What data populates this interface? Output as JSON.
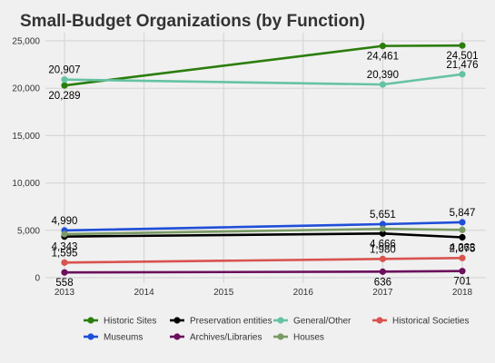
{
  "chart_data": {
    "type": "line",
    "title": "Small-Budget Organizations (by Function)",
    "xlabel": "",
    "ylabel": "",
    "xlim": [
      2013,
      2018
    ],
    "ylim": [
      0,
      25000
    ],
    "x_ticks": [
      "2013",
      "2014",
      "2015",
      "2016",
      "2017",
      "2018"
    ],
    "y_ticks": [
      "0",
      "5,000",
      "10,000",
      "15,000",
      "20,000",
      "25,000"
    ],
    "y_tick_values": [
      0,
      5000,
      10000,
      15000,
      20000,
      25000
    ],
    "grid": true,
    "legend_position": "bottom",
    "series": [
      {
        "name": "Historic Sites",
        "color": "#2b7d0c",
        "points": [
          {
            "x": 2013,
            "y": 20289
          },
          {
            "x": 2017,
            "y": 24461
          },
          {
            "x": 2018,
            "y": 24501
          }
        ],
        "labels": [
          "20,289",
          "24,461",
          "24,501"
        ],
        "label_side": [
          "below",
          "below",
          "below"
        ]
      },
      {
        "name": "Preservation entities",
        "color": "#000000",
        "points": [
          {
            "x": 2013,
            "y": 4343
          },
          {
            "x": 2017,
            "y": 4666
          },
          {
            "x": 2018,
            "y": 4263
          }
        ],
        "labels": [
          "4,343",
          "4,666",
          "4,263"
        ],
        "label_side": [
          "below",
          "below",
          "below"
        ]
      },
      {
        "name": "General/Other",
        "color": "#66c2a5",
        "points": [
          {
            "x": 2013,
            "y": 20907
          },
          {
            "x": 2017,
            "y": 20390
          },
          {
            "x": 2018,
            "y": 21476
          }
        ],
        "labels": [
          "20,907",
          "20,390",
          "21,476"
        ],
        "label_side": [
          "above",
          "above",
          "above"
        ]
      },
      {
        "name": "Historical Societies",
        "color": "#d9534f",
        "points": [
          {
            "x": 2013,
            "y": 1595
          },
          {
            "x": 2017,
            "y": 1980
          },
          {
            "x": 2018,
            "y": 2075
          }
        ],
        "labels": [
          "1,595",
          "1,980",
          "2,075"
        ],
        "label_side": [
          "above",
          "above",
          "above"
        ]
      },
      {
        "name": "Museums",
        "color": "#1f4fd8",
        "points": [
          {
            "x": 2013,
            "y": 4990
          },
          {
            "x": 2017,
            "y": 5651
          },
          {
            "x": 2018,
            "y": 5847
          }
        ],
        "labels": [
          "4,990",
          "5,651",
          "5,847"
        ],
        "label_side": [
          "above",
          "above",
          "above"
        ]
      },
      {
        "name": "Archives/Libraries",
        "color": "#6b0f5c",
        "points": [
          {
            "x": 2013,
            "y": 558
          },
          {
            "x": 2017,
            "y": 636
          },
          {
            "x": 2018,
            "y": 701
          }
        ],
        "labels": [
          "558",
          "636",
          "701"
        ],
        "label_side": [
          "below",
          "below",
          "below"
        ]
      },
      {
        "name": "Houses",
        "color": "#7a9a65",
        "points": [
          {
            "x": 2013,
            "y": 4600
          },
          {
            "x": 2017,
            "y": 5150
          },
          {
            "x": 2018,
            "y": 5050
          }
        ],
        "labels": [],
        "label_side": []
      }
    ]
  }
}
